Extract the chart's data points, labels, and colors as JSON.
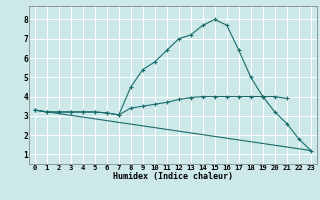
{
  "xlabel": "Humidex (Indice chaleur)",
  "bg_color": "#cce8e8",
  "grid_color": "#ffffff",
  "line_color": "#1a6b6b",
  "xlim": [
    -0.5,
    23.5
  ],
  "ylim": [
    0.5,
    8.7
  ],
  "xticks": [
    0,
    1,
    2,
    3,
    4,
    5,
    6,
    7,
    8,
    9,
    10,
    11,
    12,
    13,
    14,
    15,
    16,
    17,
    18,
    19,
    20,
    21,
    22,
    23
  ],
  "yticks": [
    1,
    2,
    3,
    4,
    5,
    6,
    7,
    8
  ],
  "series": [
    {
      "x": [
        0,
        1,
        2,
        3,
        4,
        5,
        6,
        7,
        8,
        9,
        10,
        11,
        12,
        13,
        14,
        15,
        16,
        17,
        18,
        19,
        20,
        21
      ],
      "y": [
        3.3,
        3.2,
        3.2,
        3.2,
        3.2,
        3.2,
        3.15,
        3.05,
        3.4,
        3.5,
        3.6,
        3.7,
        3.85,
        3.95,
        4.0,
        4.0,
        4.0,
        4.0,
        4.0,
        4.0,
        4.0,
        3.9
      ]
    },
    {
      "x": [
        0,
        1,
        2,
        3,
        4,
        5,
        6,
        7,
        8,
        9,
        10,
        11,
        12,
        13,
        14,
        15,
        16,
        17,
        18,
        19,
        20,
        21,
        22,
        23
      ],
      "y": [
        3.3,
        3.2,
        3.2,
        3.2,
        3.2,
        3.2,
        3.15,
        3.05,
        4.5,
        5.4,
        5.8,
        6.4,
        7.0,
        7.2,
        7.7,
        8.0,
        7.7,
        6.4,
        5.0,
        4.0,
        3.2,
        2.6,
        1.8,
        1.2
      ]
    },
    {
      "x": [
        0,
        23
      ],
      "y": [
        3.3,
        1.2
      ]
    }
  ],
  "xlabel_fontsize": 6.0,
  "tick_fontsize": 5.2
}
